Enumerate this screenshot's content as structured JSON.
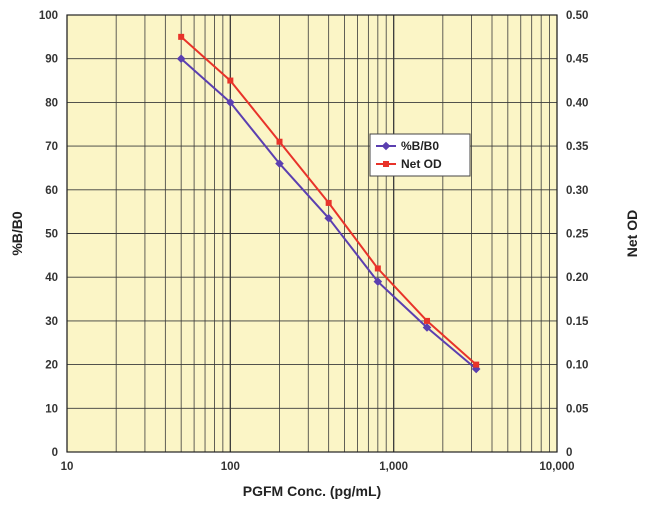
{
  "chart_data": {
    "type": "line",
    "title": "",
    "xlabel": "PGFM Conc. (pg/mL)",
    "ylabel_left": "%B/B0",
    "ylabel_right": "Net OD",
    "x_scale": "log",
    "xlim": [
      10,
      10000
    ],
    "x_ticks": [
      10,
      100,
      1000,
      10000
    ],
    "x_tick_labels": [
      "10",
      "100",
      "1,000",
      "10,000"
    ],
    "ylim_left": [
      0,
      100
    ],
    "y_ticks_left": [
      "0",
      "10",
      "20",
      "30",
      "40",
      "50",
      "60",
      "70",
      "80",
      "90",
      "100"
    ],
    "ylim_right": [
      0,
      0.5
    ],
    "y_ticks_right": [
      "0",
      "0.05",
      "0.10",
      "0.15",
      "0.20",
      "0.25",
      "0.30",
      "0.35",
      "0.40",
      "0.45",
      "0.50"
    ],
    "grid": true,
    "background_color": "#fbf5c6",
    "legend_position": "center-right",
    "series": [
      {
        "name": "%B/B0",
        "axis": "left",
        "color": "#5b3fb0",
        "marker": "diamond",
        "x": [
          50,
          100,
          200,
          400,
          800,
          1600,
          3200
        ],
        "y": [
          90,
          80,
          66,
          53.5,
          39,
          28.5,
          19
        ]
      },
      {
        "name": "Net OD",
        "axis": "right",
        "color": "#e8332a",
        "marker": "square",
        "x": [
          50,
          100,
          200,
          400,
          800,
          1600,
          3200
        ],
        "y": [
          0.475,
          0.425,
          0.355,
          0.285,
          0.21,
          0.15,
          0.1
        ]
      }
    ]
  }
}
